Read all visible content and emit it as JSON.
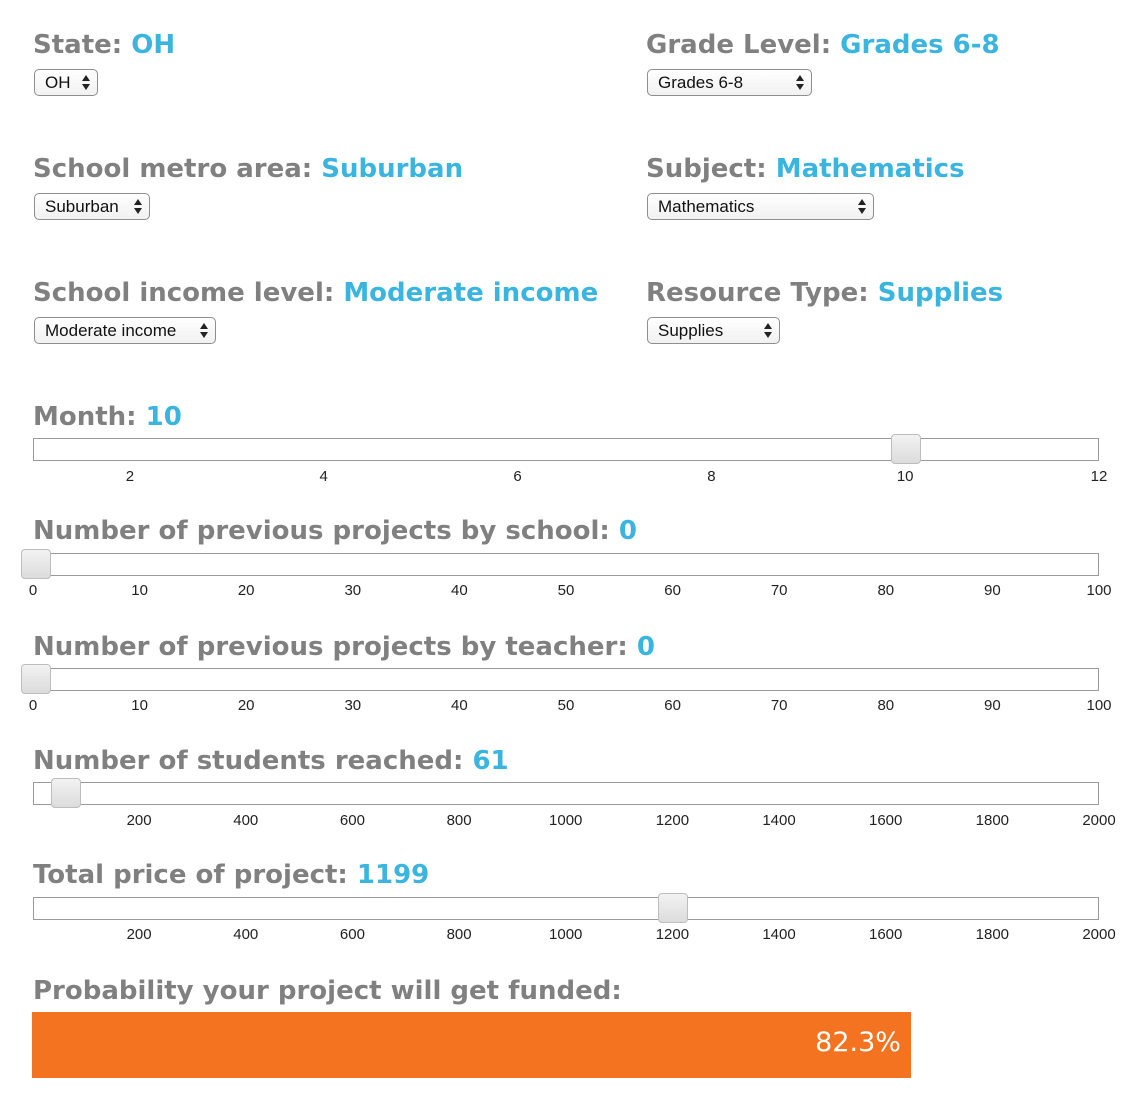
{
  "state": {
    "label": "State:",
    "value": "OH",
    "select": "OH"
  },
  "grade": {
    "label": "Grade Level:",
    "value": "Grades 6-8",
    "select": "Grades 6-8"
  },
  "metro": {
    "label": "School metro area:",
    "value": "Suburban",
    "select": "Suburban"
  },
  "subject": {
    "label": "Subject:",
    "value": "Mathematics",
    "select": "Mathematics"
  },
  "income": {
    "label": "School income level:",
    "value": "Moderate income",
    "select": "Moderate income"
  },
  "resource": {
    "label": "Resource Type:",
    "value": "Supplies",
    "select": "Supplies"
  },
  "sliders": [
    {
      "label": "Month:",
      "value": "10",
      "min": 1,
      "max": 12,
      "current": 10,
      "ticks": [
        "2",
        "4",
        "6",
        "8",
        "10",
        "12"
      ],
      "tick_values": [
        2,
        4,
        6,
        8,
        10,
        12
      ]
    },
    {
      "label": "Number of previous projects by school:",
      "value": "0",
      "min": 0,
      "max": 100,
      "current": 0,
      "ticks": [
        "0",
        "10",
        "20",
        "30",
        "40",
        "50",
        "60",
        "70",
        "80",
        "90",
        "100"
      ],
      "tick_values": [
        0,
        10,
        20,
        30,
        40,
        50,
        60,
        70,
        80,
        90,
        100
      ]
    },
    {
      "label": "Number of previous projects by teacher:",
      "value": "0",
      "min": 0,
      "max": 100,
      "current": 0,
      "ticks": [
        "0",
        "10",
        "20",
        "30",
        "40",
        "50",
        "60",
        "70",
        "80",
        "90",
        "100"
      ],
      "tick_values": [
        0,
        10,
        20,
        30,
        40,
        50,
        60,
        70,
        80,
        90,
        100
      ]
    },
    {
      "label": "Number of students reached:",
      "value": "61",
      "min": 1,
      "max": 2000,
      "current": 61,
      "ticks": [
        "200",
        "400",
        "600",
        "800",
        "1000",
        "1200",
        "1400",
        "1600",
        "1800",
        "2000"
      ],
      "tick_values": [
        200,
        400,
        600,
        800,
        1000,
        1200,
        1400,
        1600,
        1800,
        2000
      ]
    },
    {
      "label": "Total price of project:",
      "value": "1199",
      "min": 1,
      "max": 2000,
      "current": 1199,
      "ticks": [
        "200",
        "400",
        "600",
        "800",
        "1000",
        "1200",
        "1400",
        "1600",
        "1800",
        "2000"
      ],
      "tick_values": [
        200,
        400,
        600,
        800,
        1000,
        1200,
        1400,
        1600,
        1800,
        2000
      ]
    }
  ],
  "probability": {
    "label": "Probability your project will get funded:",
    "value": "82.3%",
    "fraction": 0.823
  },
  "colors": {
    "label": "#808080",
    "value": "#3ab5df",
    "bar": "#f37321"
  }
}
